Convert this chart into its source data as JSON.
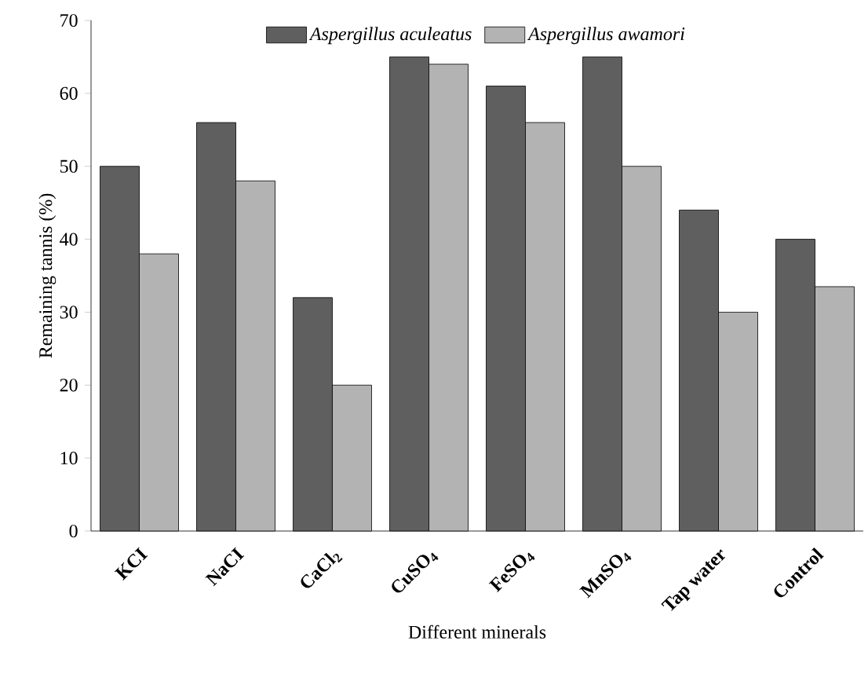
{
  "chart_data": {
    "type": "bar",
    "xlabel": "Different minerals",
    "ylabel": "Remaining tannis (%)",
    "categories": [
      "KCI",
      "NaCI",
      "CaCl$_{2}$",
      "CuSO$_{4}$",
      "FeSO$_{4}$",
      "MnSO$_{4}$",
      "Tap water",
      "Control"
    ],
    "series": [
      {
        "name": "Aspergillus aculeatus",
        "color": "#5f5f5f",
        "values": [
          50,
          56,
          32,
          65,
          61,
          65,
          44,
          40
        ]
      },
      {
        "name": "Aspergillus awamori",
        "color": "#b3b3b3",
        "values": [
          38,
          48,
          20,
          64,
          56,
          50,
          30,
          33.5
        ]
      }
    ],
    "ylim": [
      0,
      70
    ],
    "yticks": [
      0,
      10,
      20,
      30,
      40,
      50,
      60,
      70
    ],
    "legend": "top",
    "grid": false
  }
}
